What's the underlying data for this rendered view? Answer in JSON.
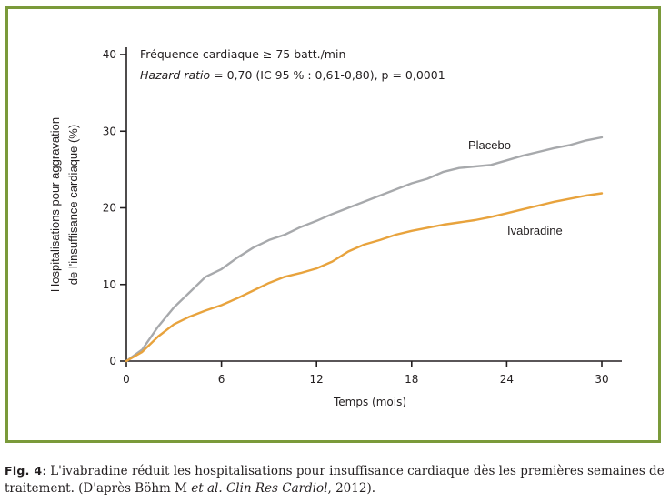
{
  "chart_data": {
    "type": "line",
    "title": "",
    "annotation_line1": "Fréquence cardiaque ≥ 75 batt./min",
    "annotation_line2_italic": "Hazard ratio",
    "annotation_line2_rest": " = 0,70 (IC 95 % : 0,61-0,80), p = 0,0001",
    "xlabel": "Temps (mois)",
    "ylabel_line1": "Hospitalisations pour aggravation",
    "ylabel_line2": "de l'insuffisance cardiaque (%)",
    "xlim": [
      0,
      31
    ],
    "ylim": [
      0,
      40
    ],
    "xticks": [
      0,
      6,
      12,
      18,
      24,
      30
    ],
    "yticks": [
      0,
      10,
      20,
      30,
      40
    ],
    "grid": false,
    "series": [
      {
        "name": "Placebo",
        "color": "#a7a9ac",
        "x": [
          0,
          1,
          2,
          3,
          4,
          5,
          6,
          7,
          8,
          9,
          10,
          11,
          12,
          13,
          14,
          15,
          16,
          17,
          18,
          19,
          20,
          21,
          22,
          23,
          24,
          25,
          26,
          27,
          28,
          29,
          30
        ],
        "y": [
          0,
          1.5,
          4.5,
          7,
          9,
          11,
          12,
          13.5,
          14.8,
          15.8,
          16.5,
          17.5,
          18.3,
          19.2,
          20,
          20.8,
          21.6,
          22.4,
          23.2,
          23.8,
          24.7,
          25.2,
          25.4,
          25.6,
          26.2,
          26.8,
          27.3,
          27.8,
          28.2,
          28.8,
          29.2
        ]
      },
      {
        "name": "Ivabradine",
        "color": "#e8a33d",
        "x": [
          0,
          1,
          2,
          3,
          4,
          5,
          6,
          7,
          8,
          9,
          10,
          11,
          12,
          13,
          14,
          15,
          16,
          17,
          18,
          19,
          20,
          21,
          22,
          23,
          24,
          25,
          26,
          27,
          28,
          29,
          30
        ],
        "y": [
          0,
          1.2,
          3.2,
          4.8,
          5.8,
          6.6,
          7.3,
          8.2,
          9.2,
          10.2,
          11,
          11.5,
          12.1,
          13,
          14.3,
          15.2,
          15.8,
          16.5,
          17,
          17.4,
          17.8,
          18.1,
          18.4,
          18.8,
          19.3,
          19.8,
          20.3,
          20.8,
          21.2,
          21.6,
          21.9
        ]
      }
    ]
  },
  "caption": {
    "fig_label": "Fig. 4",
    "text_part1": ": L'ivabradine réduit les hospitalisations pour insuffisance cardiaque dès les premières semaines de traitement. (D'après Böhm M ",
    "et_al": "et al.",
    "space": " ",
    "journal": "Clin Res Cardiol",
    "text_part2": ", 2012)."
  }
}
